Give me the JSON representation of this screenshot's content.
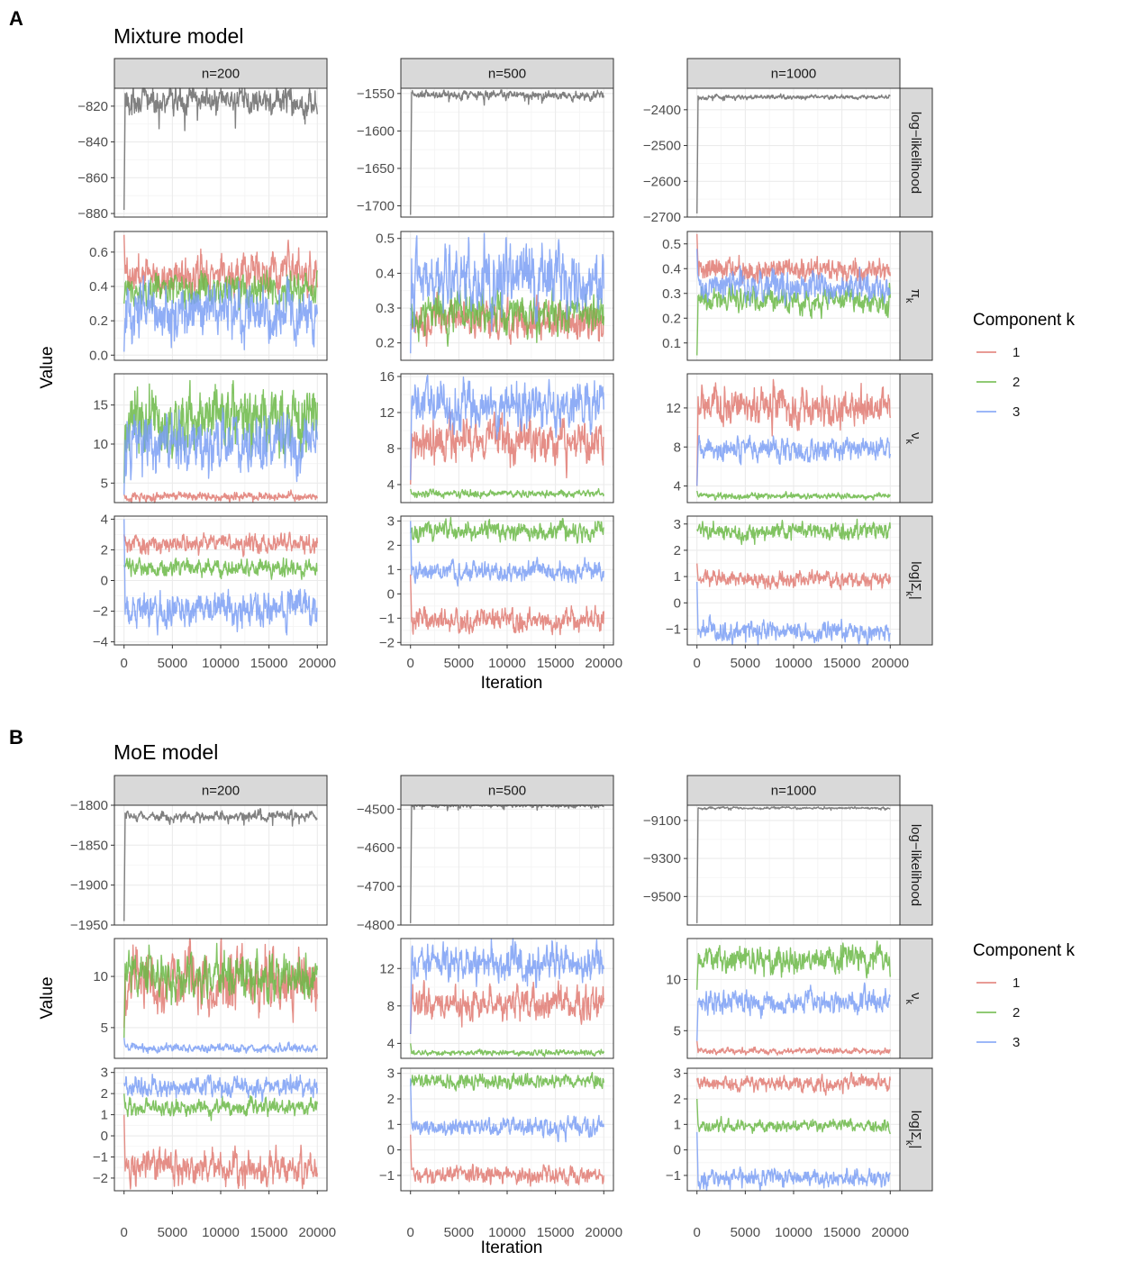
{
  "chart_data": [
    {
      "panel_label": "A",
      "title": "Mixture model",
      "type": "line",
      "xlabel": "Iteration",
      "ylabel": "Value",
      "x_ticks": [
        0,
        5000,
        10000,
        15000,
        20000
      ],
      "x_tick_labels": [
        "0",
        "5000",
        "10000",
        "15000",
        "20000"
      ],
      "xlim": [
        -1000,
        21000
      ],
      "columns": [
        "n=200",
        "n=500",
        "n=1000"
      ],
      "rows": [
        {
          "label": "log−likelihood",
          "kind": "loglik"
        },
        {
          "label": "π",
          "sub": "k",
          "kind": "comp"
        },
        {
          "label": "ν",
          "sub": "k",
          "kind": "comp"
        },
        {
          "label": "log|Σ",
          "sub": "k",
          "suffix": "|",
          "kind": "comp"
        }
      ],
      "panels": [
        [
          {
            "ylim": [
              -882,
              -810
            ],
            "ticks": [
              -880,
              -860,
              -840,
              -820
            ],
            "tick_labels": [
              "−880",
              "−860",
              "−840",
              "−820"
            ],
            "series": [
              {
                "component": "loglik",
                "start": -878,
                "mean": -817,
                "noise": 4
              }
            ]
          },
          {
            "ylim": [
              -0.03,
              0.72
            ],
            "ticks": [
              0.0,
              0.2,
              0.4,
              0.6
            ],
            "tick_labels": [
              "0.0",
              "0.2",
              "0.4",
              "0.6"
            ],
            "series": [
              {
                "component": 1,
                "start": 0.7,
                "mean": 0.47,
                "noise": 0.06
              },
              {
                "component": 2,
                "start": 0.3,
                "mean": 0.39,
                "noise": 0.05
              },
              {
                "component": 3,
                "start": 0.02,
                "mean": 0.25,
                "noise": 0.08
              }
            ]
          },
          {
            "ylim": [
              2.5,
              19
            ],
            "ticks": [
              5,
              10,
              15
            ],
            "tick_labels": [
              "5",
              "10",
              "15"
            ],
            "series": [
              {
                "component": 1,
                "start": 3.5,
                "mean": 3.3,
                "noise": 0.3
              },
              {
                "component": 2,
                "start": 5,
                "mean": 13,
                "noise": 2.2
              },
              {
                "component": 3,
                "start": 3.5,
                "mean": 10,
                "noise": 2
              }
            ]
          },
          {
            "ylim": [
              -4.2,
              4.2
            ],
            "ticks": [
              -4,
              -2,
              0,
              2,
              4
            ],
            "tick_labels": [
              "−4",
              "−2",
              "0",
              "2",
              "4"
            ],
            "series": [
              {
                "component": 1,
                "start": 3,
                "mean": 2.4,
                "noise": 0.3
              },
              {
                "component": 2,
                "start": 1,
                "mean": 0.8,
                "noise": 0.3
              },
              {
                "component": 3,
                "start": 4,
                "mean": -1.8,
                "noise": 0.6
              }
            ]
          }
        ],
        [
          {
            "ylim": [
              -1715,
              -1543
            ],
            "ticks": [
              -1700,
              -1650,
              -1600,
              -1550
            ],
            "tick_labels": [
              "−1700",
              "−1650",
              "−1600",
              "−1550"
            ],
            "series": [
              {
                "component": "loglik",
                "start": -1712,
                "mean": -1552,
                "noise": 3
              }
            ]
          },
          {
            "ylim": [
              0.15,
              0.52
            ],
            "ticks": [
              0.2,
              0.3,
              0.4,
              0.5
            ],
            "tick_labels": [
              "0.2",
              "0.3",
              "0.4",
              "0.5"
            ],
            "series": [
              {
                "component": 1,
                "start": 0.25,
                "mean": 0.26,
                "noise": 0.03
              },
              {
                "component": 2,
                "start": 0.3,
                "mean": 0.29,
                "noise": 0.03
              },
              {
                "component": 3,
                "start": 0.17,
                "mean": 0.38,
                "noise": 0.05
              }
            ]
          },
          {
            "ylim": [
              2,
              16.3
            ],
            "ticks": [
              4,
              8,
              12,
              16
            ],
            "tick_labels": [
              "4",
              "8",
              "12",
              "16"
            ],
            "series": [
              {
                "component": 1,
                "start": 4,
                "mean": 8.8,
                "noise": 1.2
              },
              {
                "component": 2,
                "start": 3.5,
                "mean": 3,
                "noise": 0.2
              },
              {
                "component": 3,
                "start": 4.5,
                "mean": 12.8,
                "noise": 1.3
              }
            ]
          },
          {
            "ylim": [
              -2.1,
              3.2
            ],
            "ticks": [
              -2,
              -1,
              0,
              1,
              2,
              3
            ],
            "tick_labels": [
              "−2",
              "−1",
              "0",
              "1",
              "2",
              "3"
            ],
            "series": [
              {
                "component": 1,
                "start": 0.8,
                "mean": -1.1,
                "noise": 0.25
              },
              {
                "component": 2,
                "start": 2.5,
                "mean": 2.6,
                "noise": 0.2
              },
              {
                "component": 3,
                "start": 3,
                "mean": 0.9,
                "noise": 0.2
              }
            ]
          }
        ],
        [
          {
            "ylim": [
              -2700,
              -2340
            ],
            "ticks": [
              -2700,
              -2600,
              -2500,
              -2400
            ],
            "tick_labels": [
              "−2700",
              "−2600",
              "−2500",
              "−2400"
            ],
            "series": [
              {
                "component": "loglik",
                "start": -2690,
                "mean": -2365,
                "noise": 3
              }
            ]
          },
          {
            "ylim": [
              0.03,
              0.55
            ],
            "ticks": [
              0.1,
              0.2,
              0.3,
              0.4,
              0.5
            ],
            "tick_labels": [
              "0.1",
              "0.2",
              "0.3",
              "0.4",
              "0.5"
            ],
            "series": [
              {
                "component": 1,
                "start": 0.54,
                "mean": 0.4,
                "noise": 0.025
              },
              {
                "component": 2,
                "start": 0.05,
                "mean": 0.27,
                "noise": 0.025
              },
              {
                "component": 3,
                "start": 0.48,
                "mean": 0.33,
                "noise": 0.03
              }
            ]
          },
          {
            "ylim": [
              2.3,
              15.5
            ],
            "ticks": [
              4,
              8,
              12
            ],
            "tick_labels": [
              "4",
              "8",
              "12"
            ],
            "series": [
              {
                "component": 1,
                "start": 4,
                "mean": 12.2,
                "noise": 1
              },
              {
                "component": 2,
                "start": 3.5,
                "mean": 3,
                "noise": 0.15
              },
              {
                "component": 3,
                "start": 4,
                "mean": 7.8,
                "noise": 0.6
              }
            ]
          },
          {
            "ylim": [
              -1.6,
              3.3
            ],
            "ticks": [
              -1,
              0,
              1,
              2,
              3
            ],
            "tick_labels": [
              "−1",
              "0",
              "1",
              "2",
              "3"
            ],
            "series": [
              {
                "component": 1,
                "start": 1.5,
                "mean": 0.9,
                "noise": 0.15
              },
              {
                "component": 2,
                "start": 2.8,
                "mean": 2.7,
                "noise": 0.18
              },
              {
                "component": 3,
                "start": 0.8,
                "mean": -1.1,
                "noise": 0.2
              }
            ]
          }
        ]
      ],
      "legend": {
        "title": "Component k",
        "labels": [
          "1",
          "2",
          "3"
        ],
        "colors": [
          "#e07a72",
          "#6bb846",
          "#7b9ff5"
        ]
      }
    },
    {
      "panel_label": "B",
      "title": "MoE model",
      "type": "line",
      "xlabel": "Iteration",
      "ylabel": "Value",
      "x_ticks": [
        0,
        5000,
        10000,
        15000,
        20000
      ],
      "x_tick_labels": [
        "0",
        "5000",
        "10000",
        "15000",
        "20000"
      ],
      "xlim": [
        -1000,
        21000
      ],
      "columns": [
        "n=200",
        "n=500",
        "n=1000"
      ],
      "rows": [
        {
          "label": "log−likelihood",
          "kind": "loglik"
        },
        {
          "label": "ν",
          "sub": "k",
          "kind": "comp"
        },
        {
          "label": "log|Σ",
          "sub": "k",
          "suffix": "|",
          "kind": "comp"
        }
      ],
      "panels": [
        [
          {
            "ylim": [
              -1950,
              -1800
            ],
            "ticks": [
              -1950,
              -1900,
              -1850,
              -1800
            ],
            "tick_labels": [
              "−1950",
              "−1900",
              "−1850",
              "−1800"
            ],
            "series": [
              {
                "component": "loglik",
                "start": -1945,
                "mean": -1814,
                "noise": 3
              }
            ]
          },
          {
            "ylim": [
              2,
              13.7
            ],
            "ticks": [
              5,
              10
            ],
            "tick_labels": [
              "5",
              "10"
            ],
            "series": [
              {
                "component": 1,
                "start": 5,
                "mean": 9.5,
                "noise": 1.5
              },
              {
                "component": 2,
                "start": 4,
                "mean": 10,
                "noise": 1.2
              },
              {
                "component": 3,
                "start": 4,
                "mean": 3,
                "noise": 0.2
              }
            ]
          },
          {
            "ylim": [
              -2.6,
              3.2
            ],
            "ticks": [
              -2,
              -1,
              0,
              1,
              2,
              3
            ],
            "tick_labels": [
              "−2",
              "−1",
              "0",
              "1",
              "2",
              "3"
            ],
            "series": [
              {
                "component": 1,
                "start": 1,
                "mean": -1.5,
                "noise": 0.4
              },
              {
                "component": 2,
                "start": 2,
                "mean": 1.3,
                "noise": 0.2
              },
              {
                "component": 3,
                "start": 2.5,
                "mean": 2.3,
                "noise": 0.25
              }
            ]
          }
        ],
        [
          {
            "ylim": [
              -4800,
              -4490
            ],
            "ticks": [
              -4800,
              -4700,
              -4600,
              -4500
            ],
            "tick_labels": [
              "−4800",
              "−4700",
              "−4600",
              "−4500"
            ],
            "series": [
              {
                "component": "loglik",
                "start": -4795,
                "mean": -4490,
                "noise": 3
              }
            ]
          },
          {
            "ylim": [
              2.4,
              15.2
            ],
            "ticks": [
              4,
              8,
              12
            ],
            "tick_labels": [
              "4",
              "8",
              "12"
            ],
            "series": [
              {
                "component": 1,
                "start": 5,
                "mean": 8.2,
                "noise": 0.9
              },
              {
                "component": 2,
                "start": 4,
                "mean": 3,
                "noise": 0.15
              },
              {
                "component": 3,
                "start": 5,
                "mean": 12.6,
                "noise": 1
              }
            ]
          },
          {
            "ylim": [
              -1.6,
              3.2
            ],
            "ticks": [
              -1,
              0,
              1,
              2,
              3
            ],
            "tick_labels": [
              "−1",
              "0",
              "1",
              "2",
              "3"
            ],
            "series": [
              {
                "component": 1,
                "start": 0.6,
                "mean": -1,
                "noise": 0.18
              },
              {
                "component": 2,
                "start": 2.5,
                "mean": 2.7,
                "noise": 0.15
              },
              {
                "component": 3,
                "start": 2.8,
                "mean": 0.9,
                "noise": 0.18
              }
            ]
          }
        ],
        [
          {
            "ylim": [
              -9650,
              -9020
            ],
            "ticks": [
              -9500,
              -9300,
              -9100
            ],
            "tick_labels": [
              "−9500",
              "−9300",
              "−9100"
            ],
            "series": [
              {
                "component": "loglik",
                "start": -9640,
                "mean": -9035,
                "noise": 3
              }
            ]
          },
          {
            "ylim": [
              2.3,
              14
            ],
            "ticks": [
              5,
              10
            ],
            "tick_labels": [
              "5",
              "10"
            ],
            "series": [
              {
                "component": 1,
                "start": 4,
                "mean": 3,
                "noise": 0.15
              },
              {
                "component": 2,
                "start": 9,
                "mean": 12,
                "noise": 0.7
              },
              {
                "component": 3,
                "start": 4,
                "mean": 7.8,
                "noise": 0.6
              }
            ]
          },
          {
            "ylim": [
              -1.6,
              3.2
            ],
            "ticks": [
              -1,
              0,
              1,
              2,
              3
            ],
            "tick_labels": [
              "−1",
              "0",
              "1",
              "2",
              "3"
            ],
            "series": [
              {
                "component": 1,
                "start": 2.8,
                "mean": 2.6,
                "noise": 0.15
              },
              {
                "component": 2,
                "start": 2,
                "mean": 0.95,
                "noise": 0.12
              },
              {
                "component": 3,
                "start": 0.7,
                "mean": -1.1,
                "noise": 0.17
              }
            ]
          }
        ]
      ],
      "legend": {
        "title": "Component k",
        "labels": [
          "1",
          "2",
          "3"
        ],
        "colors": [
          "#e07a72",
          "#6bb846",
          "#7b9ff5"
        ]
      }
    }
  ],
  "colors": {
    "loglik": "#808080",
    "grid_major": "#ebebeb",
    "grid_minor": "#f4f4f4",
    "panel_border": "#333333",
    "strip_fill": "#d9d9d9"
  }
}
